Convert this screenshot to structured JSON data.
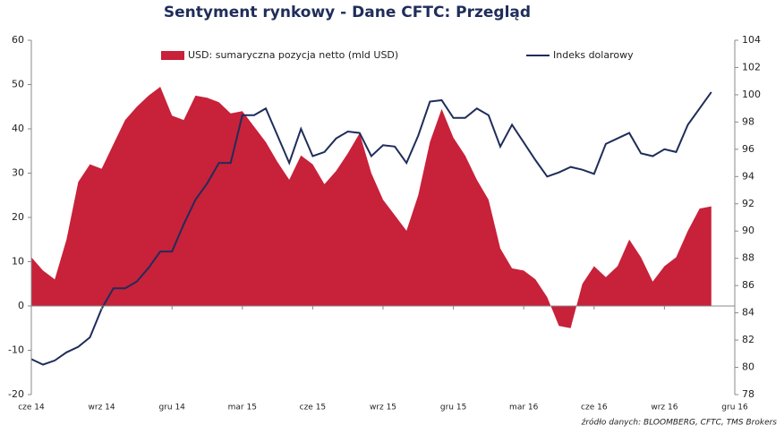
{
  "chart_data": {
    "type": "area",
    "title": "Sentyment rynkowy - Dane CFTC:  Przegląd",
    "source": "źródło danych: BLOOMBERG, CFTC, TMS Brokers",
    "x": [
      0,
      0.5,
      1,
      1.5,
      2,
      2.5,
      3,
      3.5,
      4,
      4.5,
      5,
      5.5,
      6,
      6.5,
      7,
      7.5,
      8,
      8.5,
      9,
      9.5,
      10,
      10.5,
      11,
      11.5,
      12,
      12.5,
      13,
      13.5,
      14,
      14.5,
      15,
      15.5,
      16,
      16.5,
      17,
      17.5,
      18,
      18.5,
      19,
      19.5,
      20,
      20.5,
      21,
      21.5,
      22,
      22.5,
      23,
      23.5,
      24,
      24.5,
      25,
      25.5,
      26,
      26.5,
      27,
      27.5,
      28,
      28.5,
      29
    ],
    "xlim": [
      0,
      30
    ],
    "xticks": [
      {
        "value": 0,
        "label": "cze 14"
      },
      {
        "value": 3,
        "label": "wrz 14"
      },
      {
        "value": 6,
        "label": "gru 14"
      },
      {
        "value": 9,
        "label": "mar 15"
      },
      {
        "value": 12,
        "label": "cze 15"
      },
      {
        "value": 15,
        "label": "wrz 15"
      },
      {
        "value": 18,
        "label": "gru 15"
      },
      {
        "value": 21,
        "label": "mar 16"
      },
      {
        "value": 24,
        "label": "cze 16"
      },
      {
        "value": 27,
        "label": "wrz 16"
      },
      {
        "value": 30,
        "label": "gru 16"
      }
    ],
    "ylim": [
      -20,
      60
    ],
    "yticks": [
      -20,
      -10,
      0,
      10,
      20,
      30,
      40,
      50,
      60
    ],
    "y2lim": [
      78,
      104
    ],
    "y2ticks": [
      78,
      80,
      82,
      84,
      86,
      88,
      90,
      92,
      94,
      96,
      98,
      100,
      102,
      104
    ],
    "legend": "top",
    "series": [
      {
        "name": "USD: sumaryczna pozycja netto (mld USD)",
        "type": "area",
        "color": "#c8213a",
        "values": [
          11,
          8,
          6,
          15,
          28,
          32,
          31,
          36.5,
          42,
          45,
          47.5,
          49.5,
          43,
          42,
          47.5,
          47,
          46,
          43.5,
          44,
          40.5,
          37,
          32.5,
          28.5,
          34,
          32,
          27.5,
          30.5,
          34.5,
          39,
          30,
          24,
          20.5,
          17,
          25,
          37,
          44.5,
          38,
          34,
          28.5,
          24,
          13,
          8.5,
          8,
          6,
          2,
          -4.5,
          -5,
          5,
          9,
          6.5,
          9,
          15,
          11,
          5.5,
          9,
          11,
          17,
          22,
          22.5
        ]
      },
      {
        "name": "Indeks dolarowy",
        "type": "line",
        "color": "#1f2d5a",
        "axis": "y2",
        "values": [
          80.6,
          80.2,
          80.5,
          81.1,
          81.5,
          82.2,
          84.3,
          85.8,
          85.8,
          86.3,
          87.3,
          88.5,
          88.5,
          90.5,
          92.3,
          93.5,
          95,
          95,
          98.5,
          98.5,
          99,
          97,
          95,
          97.5,
          95.5,
          95.8,
          96.8,
          97.3,
          97.2,
          95.5,
          96.3,
          96.2,
          95,
          97,
          99.5,
          99.6,
          98.3,
          98.3,
          99,
          98.5,
          96.2,
          97.8,
          96.5,
          95.2,
          94,
          94.3,
          94.7,
          94.5,
          94.2,
          96.4,
          96.8,
          97.2,
          95.7,
          95.5,
          96,
          95.8,
          97.8,
          99,
          100.2
        ]
      }
    ]
  }
}
